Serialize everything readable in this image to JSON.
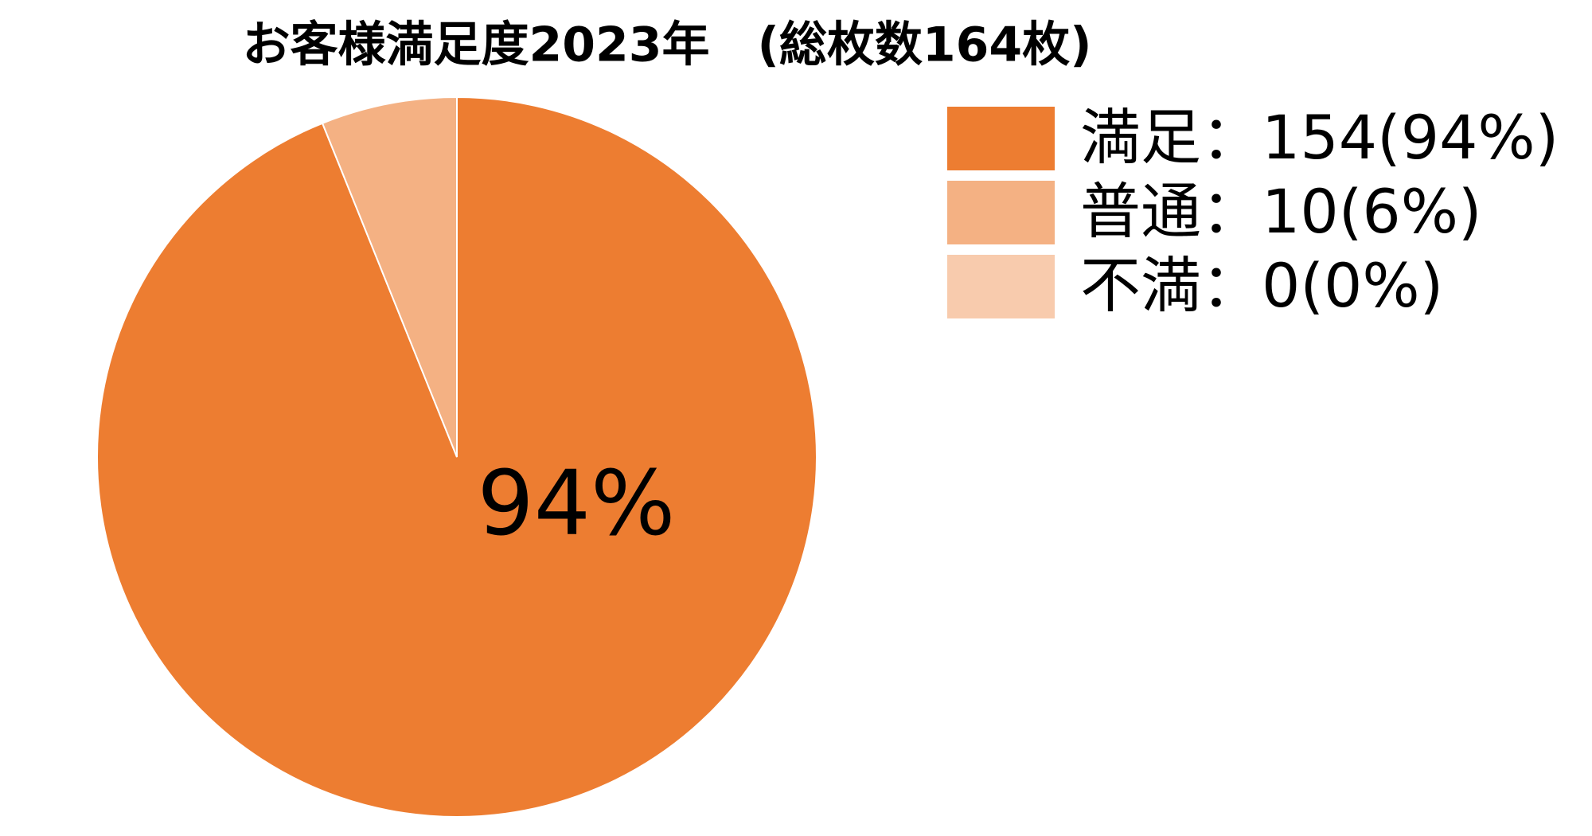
{
  "chart_data": {
    "type": "pie",
    "title": "お客様満足度2023年　(総枚数164枚)",
    "categories": [
      "満足：154(94%)",
      "普通：10(6%)",
      "不満：0(0%)"
    ],
    "values": [
      154,
      10,
      0
    ],
    "value_labels": [
      "94%",
      null,
      null
    ],
    "colors": [
      "#ed7d31",
      "#f4b183",
      "#f8cbad"
    ],
    "legend": "right"
  }
}
